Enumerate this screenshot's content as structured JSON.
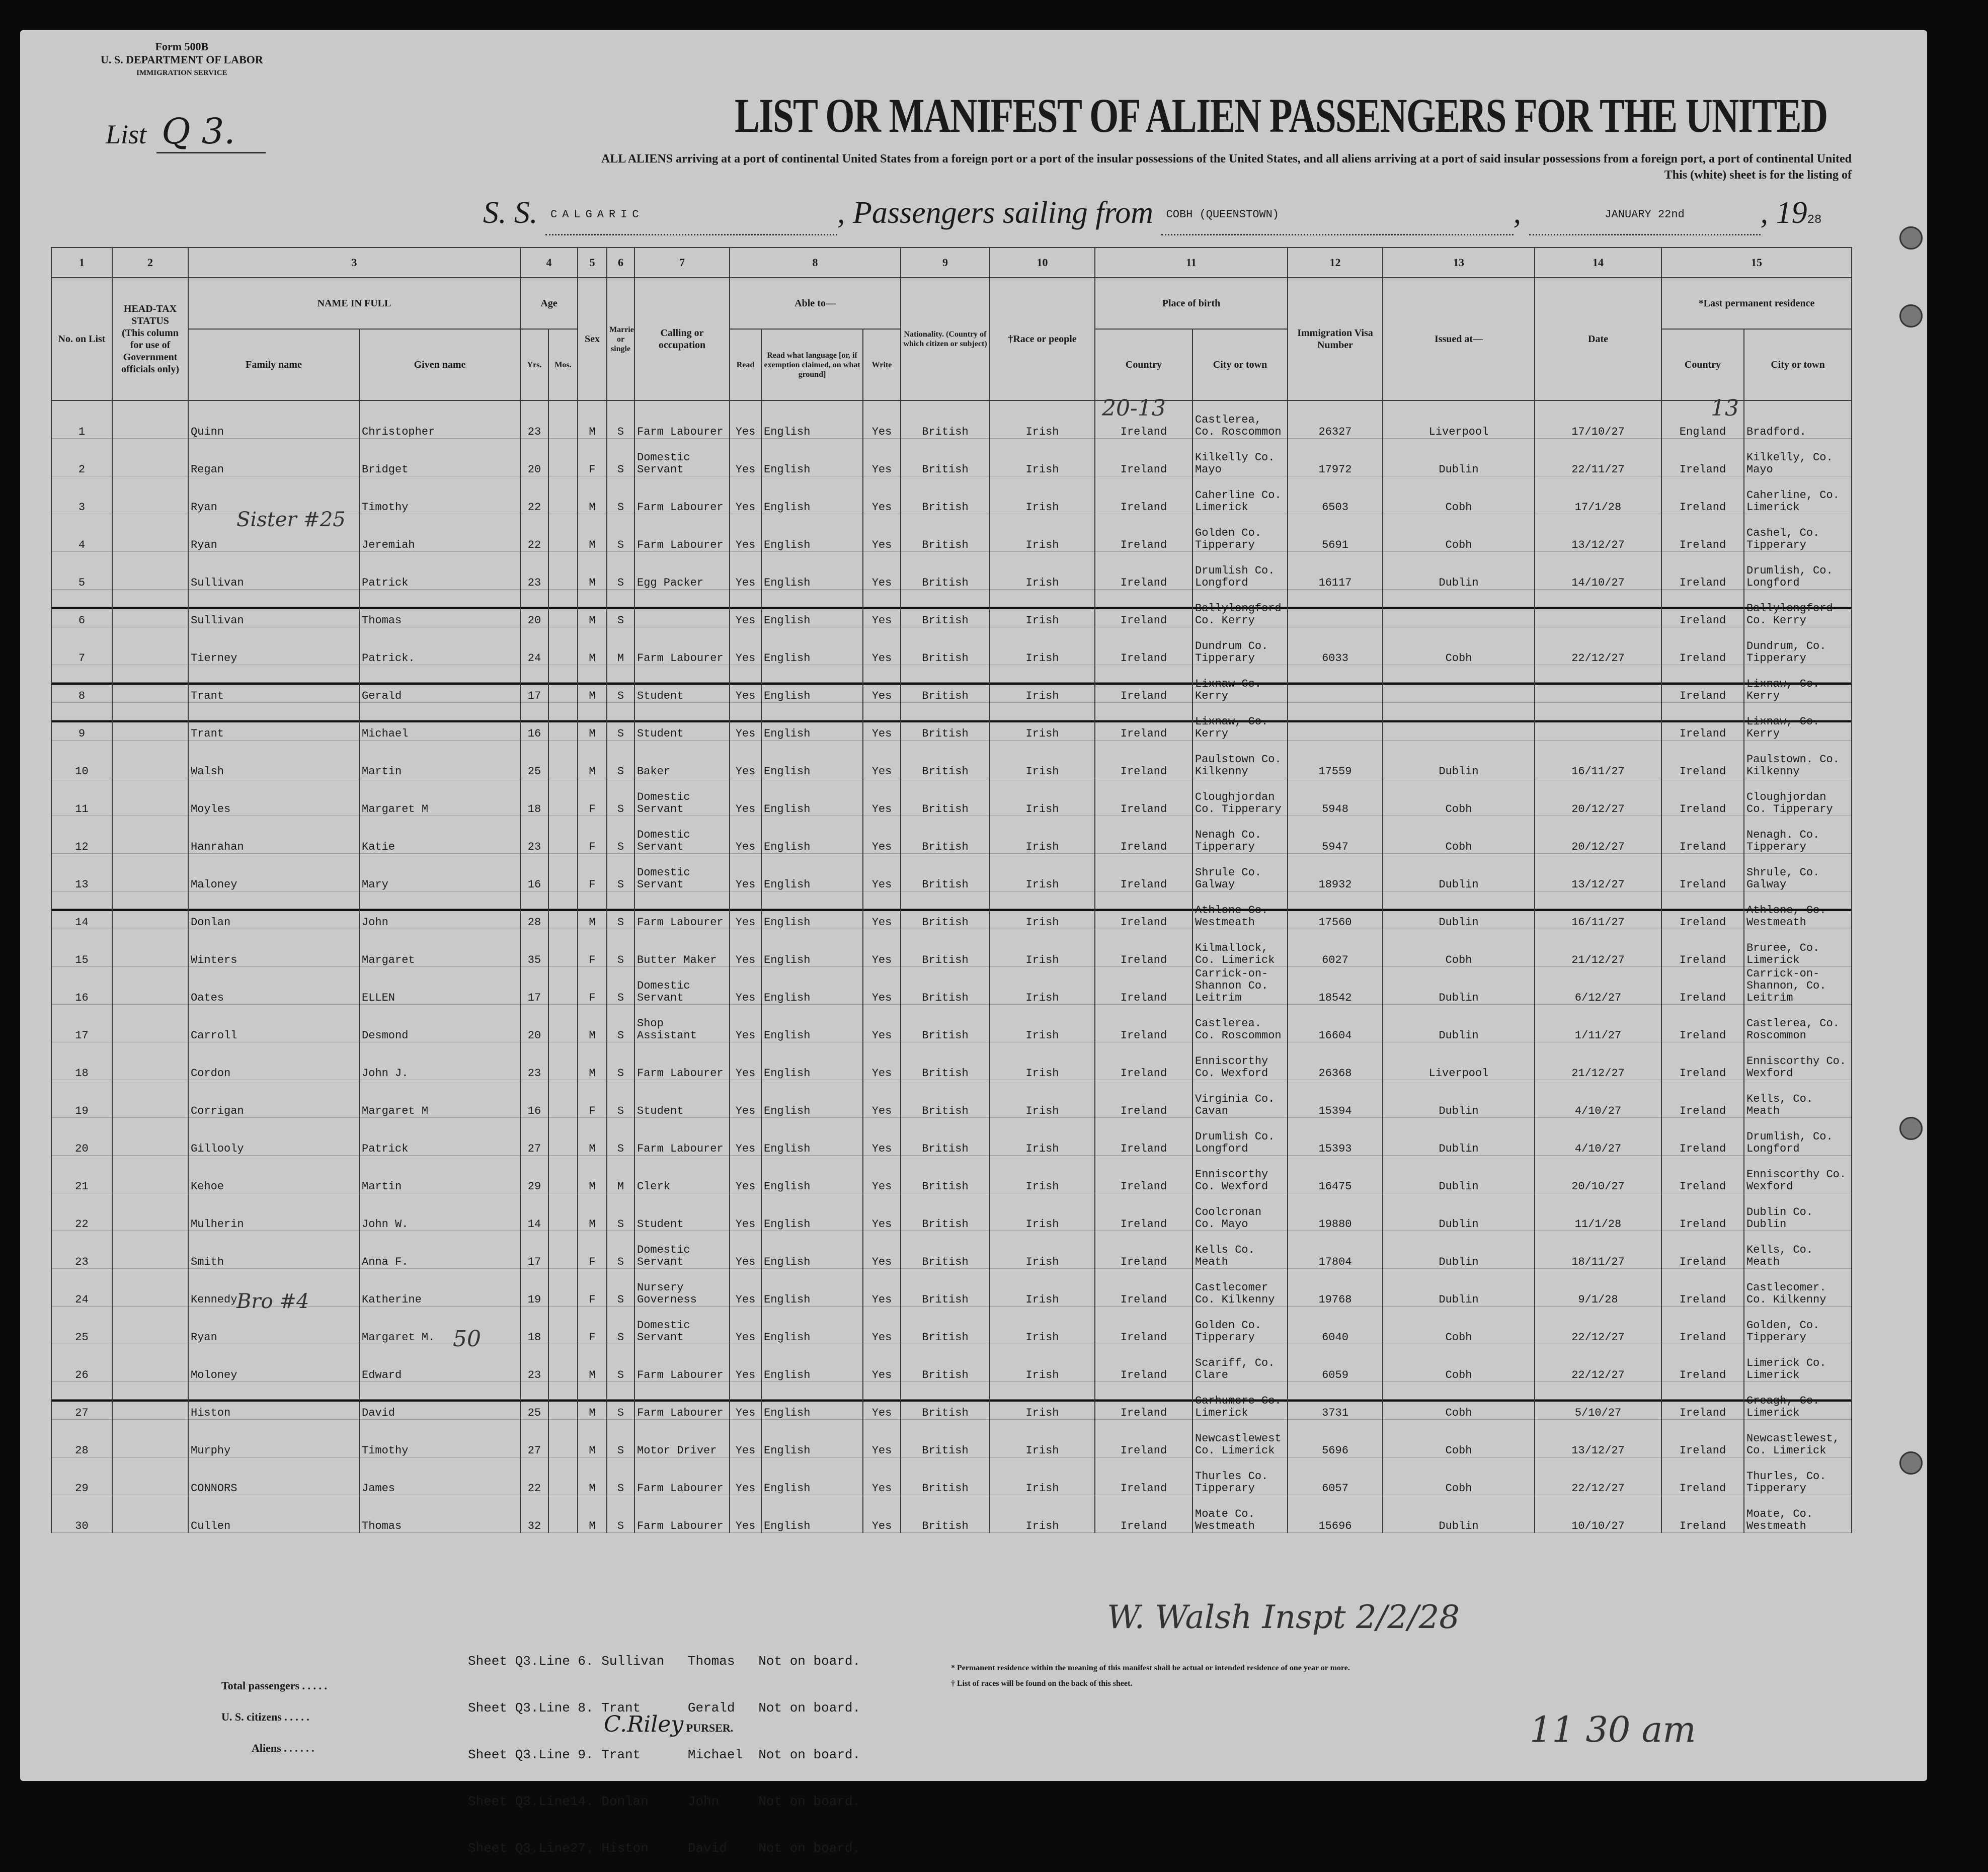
{
  "form": {
    "form_no": "Form 500B",
    "department": "U. S. DEPARTMENT OF LABOR",
    "service": "IMMIGRATION SERVICE"
  },
  "list": {
    "label": "List",
    "number": "Q 3."
  },
  "title": "LIST OR MANIFEST OF ALIEN PASSENGERS FOR THE UNITED",
  "subtitle": "ALL ALIENS arriving at a port of continental United States from a foreign port or a port of the insular possessions of the United States, and all aliens arriving at a port of said insular possessions from a foreign port, a port of continental United",
  "subtitle2": "This (white) sheet is for the listing of",
  "voyage": {
    "ss_label": "S. S.",
    "ship": "CALGARIC",
    "sailing_label": "Passengers sailing from",
    "port": "COBH (QUEENSTOWN)",
    "date": "JANUARY 22nd",
    "year_prefix": "19",
    "year": "28"
  },
  "columns": {
    "numbers": [
      "1",
      "2",
      "3",
      "4",
      "5",
      "6",
      "7",
      "8",
      "9",
      "10",
      "11",
      "12",
      "13",
      "14",
      "15"
    ],
    "no_on_list": "No. on List",
    "head_tax": "HEAD-TAX STATUS",
    "head_tax_note": "(This column for use of Government officials only)",
    "name_in_full": "NAME IN FULL",
    "family_name": "Family name",
    "given_name": "Given name",
    "age": "Age",
    "yrs": "Yrs.",
    "mos": "Mos.",
    "sex": "Sex",
    "married": "Married or single",
    "calling": "Calling or occupation",
    "able_to": "Able to—",
    "read": "Read",
    "read_language": "Read what language [or, if exemption claimed, on what ground]",
    "write": "Write",
    "nationality": "Nationality. (Country of which citizen or subject)",
    "race": "†Race or people",
    "place_of_birth": "Place of birth",
    "country": "Country",
    "city": "City or town",
    "visa": "Immigration Visa Number",
    "issued_at": "Issued at—",
    "date": "Date",
    "last_residence": "*Last permanent residence",
    "res_country": "Country",
    "res_city": "City or town"
  },
  "rows": [
    {
      "no": "1",
      "family": "Quinn",
      "given": "Christopher",
      "age": "23",
      "sex": "M",
      "ms": "S",
      "occ": "Farm Labourer",
      "read": "Yes",
      "lang": "English",
      "write": "Yes",
      "nat": "British",
      "race": "Irish",
      "bcountry": "Ireland",
      "bcity": "Castlerea, Co. Roscommon",
      "visa": "26327",
      "issued": "Liverpool",
      "date": "17/10/27",
      "rcountry": "England",
      "rcity": "Bradford.",
      "struck": false
    },
    {
      "no": "2",
      "family": "Regan",
      "given": "Bridget",
      "age": "20",
      "sex": "F",
      "ms": "S",
      "occ": "Domestic Servant",
      "read": "Yes",
      "lang": "English",
      "write": "Yes",
      "nat": "British",
      "race": "Irish",
      "bcountry": "Ireland",
      "bcity": "Kilkelly Co. Mayo",
      "visa": "17972",
      "issued": "Dublin",
      "date": "22/11/27",
      "rcountry": "Ireland",
      "rcity": "Kilkelly, Co. Mayo",
      "struck": false
    },
    {
      "no": "3",
      "family": "Ryan",
      "given": "Timothy",
      "age": "22",
      "sex": "M",
      "ms": "S",
      "occ": "Farm Labourer",
      "read": "Yes",
      "lang": "English",
      "write": "Yes",
      "nat": "British",
      "race": "Irish",
      "bcountry": "Ireland",
      "bcity": "Caherline Co. Limerick",
      "visa": "6503",
      "issued": "Cobh",
      "date": "17/1/28",
      "rcountry": "Ireland",
      "rcity": "Caherline, Co. Limerick",
      "struck": false
    },
    {
      "no": "4",
      "family": "Ryan",
      "given": "Jeremiah",
      "age": "22",
      "sex": "M",
      "ms": "S",
      "occ": "Farm Labourer",
      "read": "Yes",
      "lang": "English",
      "write": "Yes",
      "nat": "British",
      "race": "Irish",
      "bcountry": "Ireland",
      "bcity": "Golden Co. Tipperary",
      "visa": "5691",
      "issued": "Cobh",
      "date": "13/12/27",
      "rcountry": "Ireland",
      "rcity": "Cashel, Co. Tipperary",
      "struck": false
    },
    {
      "no": "5",
      "family": "Sullivan",
      "given": "Patrick",
      "age": "23",
      "sex": "M",
      "ms": "S",
      "occ": "Egg Packer",
      "read": "Yes",
      "lang": "English",
      "write": "Yes",
      "nat": "British",
      "race": "Irish",
      "bcountry": "Ireland",
      "bcity": "Drumlish Co. Longford",
      "visa": "16117",
      "issued": "Dublin",
      "date": "14/10/27",
      "rcountry": "Ireland",
      "rcity": "Drumlish, Co. Longford",
      "struck": false
    },
    {
      "no": "6",
      "family": "Sullivan",
      "given": "Thomas",
      "age": "20",
      "sex": "M",
      "ms": "S",
      "occ": "",
      "read": "Yes",
      "lang": "English",
      "write": "Yes",
      "nat": "British",
      "race": "Irish",
      "bcountry": "Ireland",
      "bcity": "Ballylongford Co. Kerry",
      "visa": "",
      "issued": "",
      "date": "",
      "rcountry": "Ireland",
      "rcity": "Ballylongford Co. Kerry",
      "struck": true
    },
    {
      "no": "7",
      "family": "Tierney",
      "given": "Patrick.",
      "age": "24",
      "sex": "M",
      "ms": "M",
      "occ": "Farm Labourer",
      "read": "Yes",
      "lang": "English",
      "write": "Yes",
      "nat": "British",
      "race": "Irish",
      "bcountry": "Ireland",
      "bcity": "Dundrum Co. Tipperary",
      "visa": "6033",
      "issued": "Cobh",
      "date": "22/12/27",
      "rcountry": "Ireland",
      "rcity": "Dundrum, Co. Tipperary",
      "struck": false
    },
    {
      "no": "8",
      "family": "Trant",
      "given": "Gerald",
      "age": "17",
      "sex": "M",
      "ms": "S",
      "occ": "Student",
      "read": "Yes",
      "lang": "English",
      "write": "Yes",
      "nat": "British",
      "race": "Irish",
      "bcountry": "Ireland",
      "bcity": "Lixnaw Co. Kerry",
      "visa": "",
      "issued": "",
      "date": "",
      "rcountry": "Ireland",
      "rcity": "Lixnaw, Co. Kerry",
      "struck": true
    },
    {
      "no": "9",
      "family": "Trant",
      "given": "Michael",
      "age": "16",
      "sex": "M",
      "ms": "S",
      "occ": "Student",
      "read": "Yes",
      "lang": "English",
      "write": "Yes",
      "nat": "British",
      "race": "Irish",
      "bcountry": "Ireland",
      "bcity": "Lixnaw, Co. Kerry",
      "visa": "",
      "issued": "",
      "date": "",
      "rcountry": "Ireland",
      "rcity": "Lixnaw, Co. Kerry",
      "struck": true
    },
    {
      "no": "10",
      "family": "Walsh",
      "given": "Martin",
      "age": "25",
      "sex": "M",
      "ms": "S",
      "occ": "Baker",
      "read": "Yes",
      "lang": "English",
      "write": "Yes",
      "nat": "British",
      "race": "Irish",
      "bcountry": "Ireland",
      "bcity": "Paulstown Co. Kilkenny",
      "visa": "17559",
      "issued": "Dublin",
      "date": "16/11/27",
      "rcountry": "Ireland",
      "rcity": "Paulstown. Co. Kilkenny",
      "struck": false
    },
    {
      "no": "11",
      "family": "Moyles",
      "given": "Margaret M",
      "age": "18",
      "sex": "F",
      "ms": "S",
      "occ": "Domestic Servant",
      "read": "Yes",
      "lang": "English",
      "write": "Yes",
      "nat": "British",
      "race": "Irish",
      "bcountry": "Ireland",
      "bcity": "Cloughjordan Co. Tipperary",
      "visa": "5948",
      "issued": "Cobh",
      "date": "20/12/27",
      "rcountry": "Ireland",
      "rcity": "Cloughjordan Co. Tipperary",
      "struck": false
    },
    {
      "no": "12",
      "family": "Hanrahan",
      "given": "Katie",
      "age": "23",
      "sex": "F",
      "ms": "S",
      "occ": "Domestic Servant",
      "read": "Yes",
      "lang": "English",
      "write": "Yes",
      "nat": "British",
      "race": "Irish",
      "bcountry": "Ireland",
      "bcity": "Nenagh Co. Tipperary",
      "visa": "5947",
      "issued": "Cobh",
      "date": "20/12/27",
      "rcountry": "Ireland",
      "rcity": "Nenagh. Co. Tipperary",
      "struck": false
    },
    {
      "no": "13",
      "family": "Maloney",
      "given": "Mary",
      "age": "16",
      "sex": "F",
      "ms": "S",
      "occ": "Domestic Servant",
      "read": "Yes",
      "lang": "English",
      "write": "Yes",
      "nat": "British",
      "race": "Irish",
      "bcountry": "Ireland",
      "bcity": "Shrule Co. Galway",
      "visa": "18932",
      "issued": "Dublin",
      "date": "13/12/27",
      "rcountry": "Ireland",
      "rcity": "Shrule, Co. Galway",
      "struck": false
    },
    {
      "no": "14",
      "family": "Donlan",
      "given": "John",
      "age": "28",
      "sex": "M",
      "ms": "S",
      "occ": "Farm Labourer",
      "read": "Yes",
      "lang": "English",
      "write": "Yes",
      "nat": "British",
      "race": "Irish",
      "bcountry": "Ireland",
      "bcity": "Athlone Co. Westmeath",
      "visa": "17560",
      "issued": "Dublin",
      "date": "16/11/27",
      "rcountry": "Ireland",
      "rcity": "Athlone, Co. Westmeath",
      "struck": true
    },
    {
      "no": "15",
      "family": "Winters",
      "given": "Margaret",
      "age": "35",
      "sex": "F",
      "ms": "S",
      "occ": "Butter Maker",
      "read": "Yes",
      "lang": "English",
      "write": "Yes",
      "nat": "British",
      "race": "Irish",
      "bcountry": "Ireland",
      "bcity": "Kilmallock, Co. Limerick",
      "visa": "6027",
      "issued": "Cobh",
      "date": "21/12/27",
      "rcountry": "Ireland",
      "rcity": "Bruree, Co. Limerick",
      "struck": false
    },
    {
      "no": "16",
      "family": "Oates",
      "given": "ELLEN",
      "age": "17",
      "sex": "F",
      "ms": "S",
      "occ": "Domestic Servant",
      "read": "Yes",
      "lang": "English",
      "write": "Yes",
      "nat": "British",
      "race": "Irish",
      "bcountry": "Ireland",
      "bcity": "Carrick-on-Shannon Co. Leitrim",
      "visa": "18542",
      "issued": "Dublin",
      "date": "6/12/27",
      "rcountry": "Ireland",
      "rcity": "Carrick-on-Shannon, Co. Leitrim",
      "struck": false
    },
    {
      "no": "17",
      "family": "Carroll",
      "given": "Desmond",
      "age": "20",
      "sex": "M",
      "ms": "S",
      "occ": "Shop Assistant",
      "read": "Yes",
      "lang": "English",
      "write": "Yes",
      "nat": "British",
      "race": "Irish",
      "bcountry": "Ireland",
      "bcity": "Castlerea. Co. Roscommon",
      "visa": "16604",
      "issued": "Dublin",
      "date": "1/11/27",
      "rcountry": "Ireland",
      "rcity": "Castlerea, Co. Roscommon",
      "struck": false
    },
    {
      "no": "18",
      "family": "Cordon",
      "given": "John J.",
      "age": "23",
      "sex": "M",
      "ms": "S",
      "occ": "Farm Labourer",
      "read": "Yes",
      "lang": "English",
      "write": "Yes",
      "nat": "British",
      "race": "Irish",
      "bcountry": "Ireland",
      "bcity": "Enniscorthy Co. Wexford",
      "visa": "26368",
      "issued": "Liverpool",
      "date": "21/12/27",
      "rcountry": "Ireland",
      "rcity": "Enniscorthy Co. Wexford",
      "struck": false
    },
    {
      "no": "19",
      "family": "Corrigan",
      "given": "Margaret M",
      "age": "16",
      "sex": "F",
      "ms": "S",
      "occ": "Student",
      "read": "Yes",
      "lang": "English",
      "write": "Yes",
      "nat": "British",
      "race": "Irish",
      "bcountry": "Ireland",
      "bcity": "Virginia Co. Cavan",
      "visa": "15394",
      "issued": "Dublin",
      "date": "4/10/27",
      "rcountry": "Ireland",
      "rcity": "Kells, Co. Meath",
      "struck": false
    },
    {
      "no": "20",
      "family": "Gillooly",
      "given": "Patrick",
      "age": "27",
      "sex": "M",
      "ms": "S",
      "occ": "Farm Labourer",
      "read": "Yes",
      "lang": "English",
      "write": "Yes",
      "nat": "British",
      "race": "Irish",
      "bcountry": "Ireland",
      "bcity": "Drumlish Co. Longford",
      "visa": "15393",
      "issued": "Dublin",
      "date": "4/10/27",
      "rcountry": "Ireland",
      "rcity": "Drumlish, Co. Longford",
      "struck": false
    },
    {
      "no": "21",
      "family": "Kehoe",
      "given": "Martin",
      "age": "29",
      "sex": "M",
      "ms": "M",
      "occ": "Clerk",
      "read": "Yes",
      "lang": "English",
      "write": "Yes",
      "nat": "British",
      "race": "Irish",
      "bcountry": "Ireland",
      "bcity": "Enniscorthy Co. Wexford",
      "visa": "16475",
      "issued": "Dublin",
      "date": "20/10/27",
      "rcountry": "Ireland",
      "rcity": "Enniscorthy Co. Wexford",
      "struck": false
    },
    {
      "no": "22",
      "family": "Mulherin",
      "given": "John W.",
      "age": "14",
      "sex": "M",
      "ms": "S",
      "occ": "Student",
      "read": "Yes",
      "lang": "English",
      "write": "Yes",
      "nat": "British",
      "race": "Irish",
      "bcountry": "Ireland",
      "bcity": "Coolcronan Co. Mayo",
      "visa": "19880",
      "issued": "Dublin",
      "date": "11/1/28",
      "rcountry": "Ireland",
      "rcity": "Dublin Co. Dublin",
      "struck": false
    },
    {
      "no": "23",
      "family": "Smith",
      "given": "Anna F.",
      "age": "17",
      "sex": "F",
      "ms": "S",
      "occ": "Domestic Servant",
      "read": "Yes",
      "lang": "English",
      "write": "Yes",
      "nat": "British",
      "race": "Irish",
      "bcountry": "Ireland",
      "bcity": "Kells Co. Meath",
      "visa": "17804",
      "issued": "Dublin",
      "date": "18/11/27",
      "rcountry": "Ireland",
      "rcity": "Kells, Co. Meath",
      "struck": false
    },
    {
      "no": "24",
      "family": "Kennedy",
      "given": "Katherine",
      "age": "19",
      "sex": "F",
      "ms": "S",
      "occ": "Nursery Governess",
      "read": "Yes",
      "lang": "English",
      "write": "Yes",
      "nat": "British",
      "race": "Irish",
      "bcountry": "Ireland",
      "bcity": "Castlecomer Co. Kilkenny",
      "visa": "19768",
      "issued": "Dublin",
      "date": "9/1/28",
      "rcountry": "Ireland",
      "rcity": "Castlecomer. Co. Kilkenny",
      "struck": false
    },
    {
      "no": "25",
      "family": "Ryan",
      "given": "Margaret M.",
      "age": "18",
      "sex": "F",
      "ms": "S",
      "occ": "Domestic Servant",
      "read": "Yes",
      "lang": "English",
      "write": "Yes",
      "nat": "British",
      "race": "Irish",
      "bcountry": "Ireland",
      "bcity": "Golden Co. Tipperary",
      "visa": "6040",
      "issued": "Cobh",
      "date": "22/12/27",
      "rcountry": "Ireland",
      "rcity": "Golden, Co. Tipperary",
      "struck": false
    },
    {
      "no": "26",
      "family": "Moloney",
      "given": "Edward",
      "age": "23",
      "sex": "M",
      "ms": "S",
      "occ": "Farm Labourer",
      "read": "Yes",
      "lang": "English",
      "write": "Yes",
      "nat": "British",
      "race": "Irish",
      "bcountry": "Ireland",
      "bcity": "Scariff, Co. Clare",
      "visa": "6059",
      "issued": "Cobh",
      "date": "22/12/27",
      "rcountry": "Ireland",
      "rcity": "Limerick Co. Limerick",
      "struck": false
    },
    {
      "no": "27",
      "family": "Histon",
      "given": "David",
      "age": "25",
      "sex": "M",
      "ms": "S",
      "occ": "Farm Labourer",
      "read": "Yes",
      "lang": "English",
      "write": "Yes",
      "nat": "British",
      "race": "Irish",
      "bcountry": "Ireland",
      "bcity": "Carhumore Co. Limerick",
      "visa": "3731",
      "issued": "Cobh",
      "date": "5/10/27",
      "rcountry": "Ireland",
      "rcity": "Creagh, Co. Limerick",
      "struck": true
    },
    {
      "no": "28",
      "family": "Murphy",
      "given": "Timothy",
      "age": "27",
      "sex": "M",
      "ms": "S",
      "occ": "Motor Driver",
      "read": "Yes",
      "lang": "English",
      "write": "Yes",
      "nat": "British",
      "race": "Irish",
      "bcountry": "Ireland",
      "bcity": "Newcastlewest Co. Limerick",
      "visa": "5696",
      "issued": "Cobh",
      "date": "13/12/27",
      "rcountry": "Ireland",
      "rcity": "Newcastlewest, Co. Limerick",
      "struck": false
    },
    {
      "no": "29",
      "family": "CONNORS",
      "given": "James",
      "age": "22",
      "sex": "M",
      "ms": "S",
      "occ": "Farm Labourer",
      "read": "Yes",
      "lang": "English",
      "write": "Yes",
      "nat": "British",
      "race": "Irish",
      "bcountry": "Ireland",
      "bcity": "Thurles Co. Tipperary",
      "visa": "6057",
      "issued": "Cobh",
      "date": "22/12/27",
      "rcountry": "Ireland",
      "rcity": "Thurles, Co. Tipperary",
      "struck": false
    },
    {
      "no": "30",
      "family": "Cullen",
      "given": "Thomas",
      "age": "32",
      "sex": "M",
      "ms": "S",
      "occ": "Farm Labourer",
      "read": "Yes",
      "lang": "English",
      "write": "Yes",
      "nat": "British",
      "race": "Irish",
      "bcountry": "Ireland",
      "bcity": "Moate Co. Westmeath",
      "visa": "15696",
      "issued": "Dublin",
      "date": "10/10/27",
      "rcountry": "Ireland",
      "rcity": "Moate, Co. Westmeath",
      "struck": false
    }
  ],
  "annotations": {
    "sister": "Sister #25",
    "bro": "Bro #4",
    "fifty": "50",
    "birth_note": "20-13",
    "res_note": "13"
  },
  "footer": {
    "not_on_board": [
      "Sheet Q3.Line 6. Sullivan   Thomas   Not on board.",
      "Sheet Q3.Line 8. Trant      Gerald   Not on board.",
      "Sheet Q3.Line 9. Trant      Michael  Not on board.",
      "Sheet Q3.Line14. Donlan     John     Not on board.",
      "Sheet Q3.Line27. Histon     David    Not on board."
    ],
    "note1": "* Permanent residence within the meaning of this manifest shall be actual or intended residence of one year or more.",
    "note2": "† List of races will be found on the back of this sheet.",
    "total_passengers": "Total passengers . . . . .",
    "us_citizens": "U. S. citizens . . . . .",
    "aliens": "Aliens . . . . . .",
    "purser_label": "PURSER.",
    "purser_signature": "C.Riley",
    "inspector_signature": "W. Walsh Inspt 2/2/28",
    "time_note": "11 30 am"
  }
}
